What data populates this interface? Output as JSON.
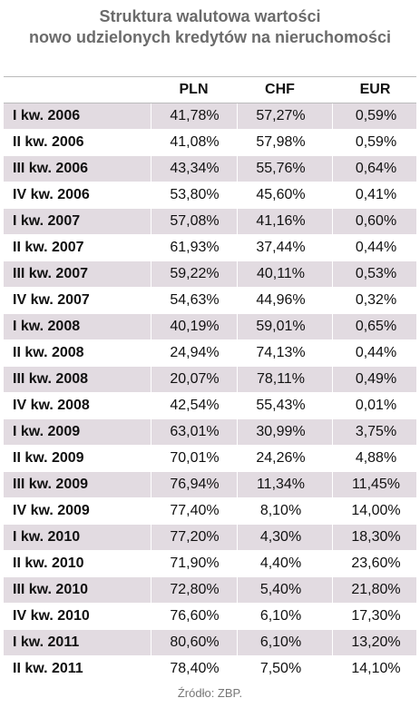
{
  "header": {
    "title_line1": "Struktura walutowa wartości",
    "title_line2": "nowo udzielonych kredytów na nieruchomości"
  },
  "table": {
    "columns": [
      "PLN",
      "CHF",
      "EUR"
    ],
    "rows": [
      [
        "I kw. 2006",
        "41,78%",
        "57,27%",
        "0,59%"
      ],
      [
        "II kw. 2006",
        "41,08%",
        "57,98%",
        "0,59%"
      ],
      [
        "III kw. 2006",
        "43,34%",
        "55,76%",
        "0,64%"
      ],
      [
        "IV kw. 2006",
        "53,80%",
        "45,60%",
        "0,41%"
      ],
      [
        "I kw. 2007",
        "57,08%",
        "41,16%",
        "0,60%"
      ],
      [
        "II kw. 2007",
        "61,93%",
        "37,44%",
        "0,44%"
      ],
      [
        "III kw. 2007",
        "59,22%",
        "40,11%",
        "0,53%"
      ],
      [
        "IV kw. 2007",
        "54,63%",
        "44,96%",
        "0,32%"
      ],
      [
        "I kw. 2008",
        "40,19%",
        "59,01%",
        "0,65%"
      ],
      [
        "II kw. 2008",
        "24,94%",
        "74,13%",
        "0,44%"
      ],
      [
        "III kw. 2008",
        "20,07%",
        "78,11%",
        "0,49%"
      ],
      [
        "IV kw. 2008",
        "42,54%",
        "55,43%",
        "0,01%"
      ],
      [
        "I kw. 2009",
        "63,01%",
        "30,99%",
        "3,75%"
      ],
      [
        "II kw. 2009",
        "70,01%",
        "24,26%",
        "4,88%"
      ],
      [
        "III kw. 2009",
        "76,94%",
        "11,34%",
        "11,45%"
      ],
      [
        "IV kw. 2009",
        "77,40%",
        "8,10%",
        "14,00%"
      ],
      [
        "I kw. 2010",
        "77,20%",
        "4,30%",
        "18,30%"
      ],
      [
        "II kw. 2010",
        "71,90%",
        "4,40%",
        "23,60%"
      ],
      [
        "III kw. 2010",
        "72,80%",
        "5,40%",
        "21,80%"
      ],
      [
        "IV kw. 2010",
        "76,60%",
        "6,10%",
        "17,30%"
      ],
      [
        "I kw. 2011",
        "80,60%",
        "6,10%",
        "13,20%"
      ],
      [
        "II kw. 2011",
        "78,40%",
        "7,50%",
        "14,10%"
      ]
    ]
  },
  "footer": {
    "source": "Źródło: ZBP."
  }
}
